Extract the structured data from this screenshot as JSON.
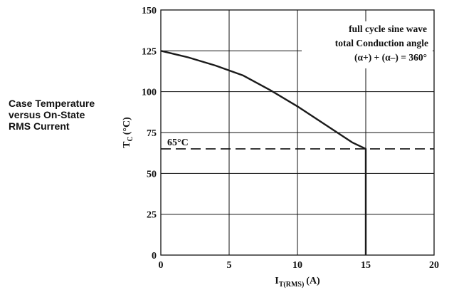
{
  "side_title": {
    "lines": [
      "Case Temperature",
      "versus On-State",
      "RMS Current"
    ]
  },
  "chart_data": {
    "type": "line",
    "title": "Case Temperature versus On-State RMS Current",
    "xlabel": {
      "main": "I",
      "sub": "T(RMS)",
      "unit": "(A)"
    },
    "ylabel": {
      "main": "T",
      "sub": "C",
      "unit": "(°C)"
    },
    "xlim": [
      0,
      20
    ],
    "ylim": [
      0,
      150
    ],
    "xticks": [
      0,
      5,
      10,
      15,
      20
    ],
    "yticks": [
      0,
      25,
      50,
      75,
      100,
      125,
      150
    ],
    "grid": true,
    "series": [
      {
        "x": [
          0,
          2,
          4,
          6,
          8,
          10,
          12,
          14,
          15,
          15
        ],
        "y": [
          125,
          121,
          116,
          110,
          101,
          91,
          80,
          69,
          65,
          0
        ],
        "color": "#1a1a1a"
      }
    ],
    "reference_line": {
      "y": 65,
      "label": "65°C",
      "style": "dashed"
    },
    "annotation": {
      "lines": [
        "full cycle sine wave",
        "total Conduction angle",
        "(α+) + (α–) = 360°"
      ]
    }
  }
}
